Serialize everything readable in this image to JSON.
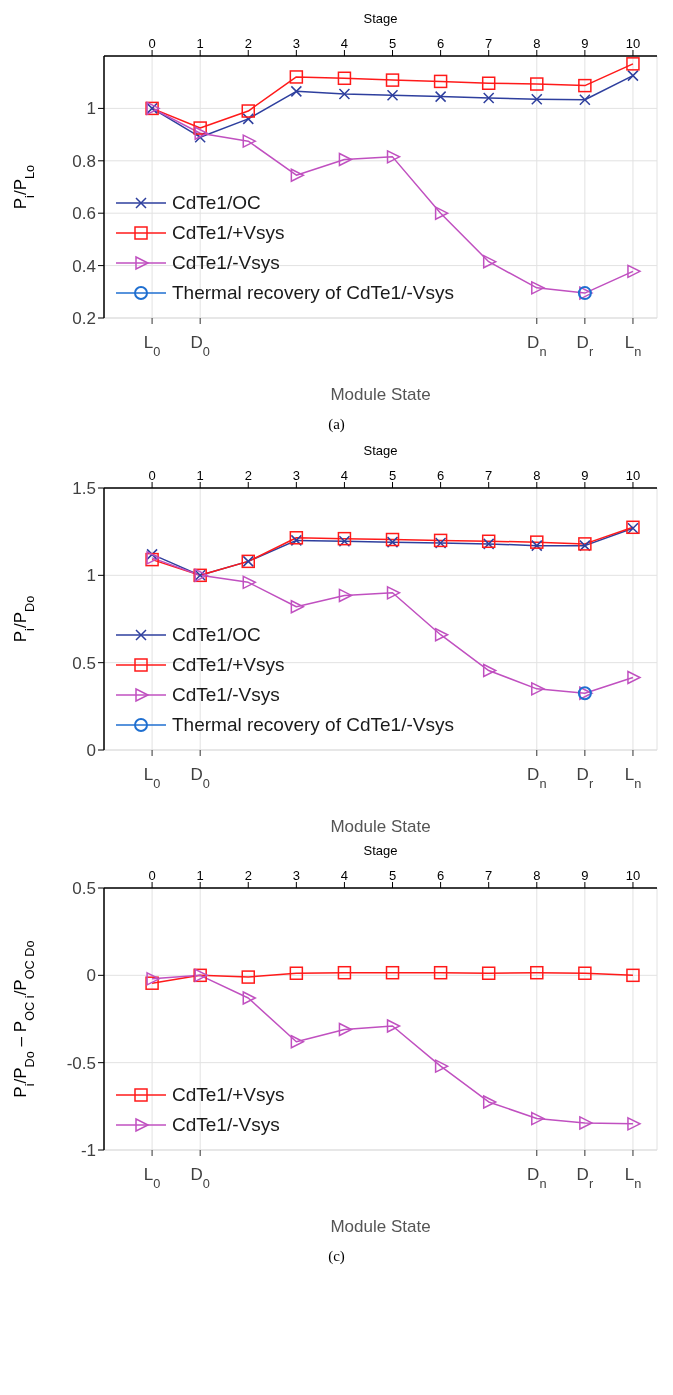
{
  "chart_data": [
    {
      "type": "line",
      "categories": [
        "L$_{0}$",
        "D$_{0}$",
        null,
        null,
        null,
        null,
        null,
        null,
        "D$_{n}$",
        "D$_{r}$",
        "L$_{n}$"
      ],
      "xlabel": "Module State",
      "ylabel": "P$_{i}$/P$_{Lo}$",
      "x2label": "Stage",
      "x2lim": [
        -1,
        10.5
      ],
      "x2ticks": [
        0,
        1,
        2,
        3,
        4,
        5,
        6,
        7,
        8,
        9,
        10
      ],
      "ylim": [
        0.2,
        1.2
      ],
      "yticks": [
        0.2,
        0.4,
        0.6,
        0.8,
        1
      ],
      "grid": true,
      "legend": "bottom left",
      "line_style": "solid",
      "series": [
        {
          "name": "CdTe1/OC",
          "color": "#2e3f9e",
          "marker": "cross",
          "values": [
            1.0,
            0.89,
            0.96,
            1.065,
            1.055,
            1.05,
            1.045,
            1.04,
            1.035,
            1.033,
            1.125
          ]
        },
        {
          "name": "CdTe1/+Vsys",
          "color": "#ff1a1a",
          "marker": "square",
          "values": [
            1.0,
            0.925,
            0.99,
            1.12,
            1.115,
            1.108,
            1.103,
            1.096,
            1.093,
            1.087,
            1.17
          ]
        },
        {
          "name": "CdTe1/-Vsys",
          "color": "#c050c0",
          "marker": "triangle",
          "values": [
            1.0,
            0.905,
            0.875,
            0.745,
            0.805,
            0.815,
            0.6,
            0.415,
            0.315,
            0.295,
            0.378
          ]
        },
        {
          "name": "Thermal recovery of CdTe1/-Vsys",
          "color": "#1f6fd0",
          "marker": "circle",
          "values": [
            null,
            null,
            null,
            null,
            null,
            null,
            null,
            null,
            null,
            0.295,
            null
          ]
        }
      ],
      "annotations": [
        "(a)"
      ]
    },
    {
      "type": "line",
      "categories": [
        "L$_{0}$",
        "D$_{0}$",
        null,
        null,
        null,
        null,
        null,
        null,
        "D$_{n}$",
        "D$_{r}$",
        "L$_{n}$"
      ],
      "xlabel": "Module State",
      "ylabel": "P$_{i}$/P$_{Do}$",
      "x2label": "Stage",
      "x2lim": [
        -1,
        10.5
      ],
      "x2ticks": [
        0,
        1,
        2,
        3,
        4,
        5,
        6,
        7,
        8,
        9,
        10
      ],
      "ylim": [
        0,
        1.5
      ],
      "yticks": [
        0,
        0.5,
        1,
        1.5
      ],
      "grid": true,
      "legend": "bottom left",
      "line_style": "solid",
      "series": [
        {
          "name": "CdTe1/OC",
          "color": "#2e3f9e",
          "marker": "cross",
          "values": [
            1.12,
            1.0,
            1.08,
            1.2,
            1.195,
            1.19,
            1.185,
            1.18,
            1.17,
            1.17,
            1.27
          ]
        },
        {
          "name": "CdTe1/+Vsys",
          "color": "#ff1a1a",
          "marker": "square",
          "values": [
            1.09,
            1.0,
            1.08,
            1.215,
            1.21,
            1.205,
            1.2,
            1.195,
            1.19,
            1.18,
            1.275
          ]
        },
        {
          "name": "CdTe1/-Vsys",
          "color": "#c050c0",
          "marker": "triangle",
          "values": [
            1.1,
            1.0,
            0.96,
            0.82,
            0.885,
            0.9,
            0.66,
            0.455,
            0.35,
            0.325,
            0.415
          ]
        },
        {
          "name": "Thermal recovery of CdTe1/-Vsys",
          "color": "#1f6fd0",
          "marker": "circle",
          "values": [
            null,
            null,
            null,
            null,
            null,
            null,
            null,
            null,
            null,
            0.325,
            null
          ]
        }
      ]
    },
    {
      "type": "line",
      "categories": [
        "L$_{0}$",
        "D$_{0}$",
        null,
        null,
        null,
        null,
        null,
        null,
        "D$_{n}$",
        "D$_{r}$",
        "L$_{n}$"
      ],
      "xlabel": "Module State",
      "ylabel": "P$_{i}$/P$_{Do}$ – P$_{OC i}$/P$_{OC Do}$",
      "x2label": "Stage",
      "x2lim": [
        -1,
        10.5
      ],
      "x2ticks": [
        0,
        1,
        2,
        3,
        4,
        5,
        6,
        7,
        8,
        9,
        10
      ],
      "ylim": [
        -1,
        0.5
      ],
      "yticks": [
        -1,
        -0.5,
        0,
        0.5
      ],
      "grid": true,
      "legend": "bottom left",
      "line_style": "solid",
      "series": [
        {
          "name": "CdTe1/+Vsys",
          "color": "#ff1a1a",
          "marker": "square",
          "values": [
            -0.045,
            0.0,
            -0.01,
            0.012,
            0.015,
            0.015,
            0.015,
            0.012,
            0.015,
            0.012,
            0.0
          ]
        },
        {
          "name": "CdTe1/-Vsys",
          "color": "#c050c0",
          "marker": "triangle",
          "values": [
            -0.02,
            0.0,
            -0.13,
            -0.38,
            -0.31,
            -0.29,
            -0.52,
            -0.725,
            -0.82,
            -0.845,
            -0.85
          ]
        }
      ],
      "annotations": [
        "(c)"
      ]
    }
  ]
}
